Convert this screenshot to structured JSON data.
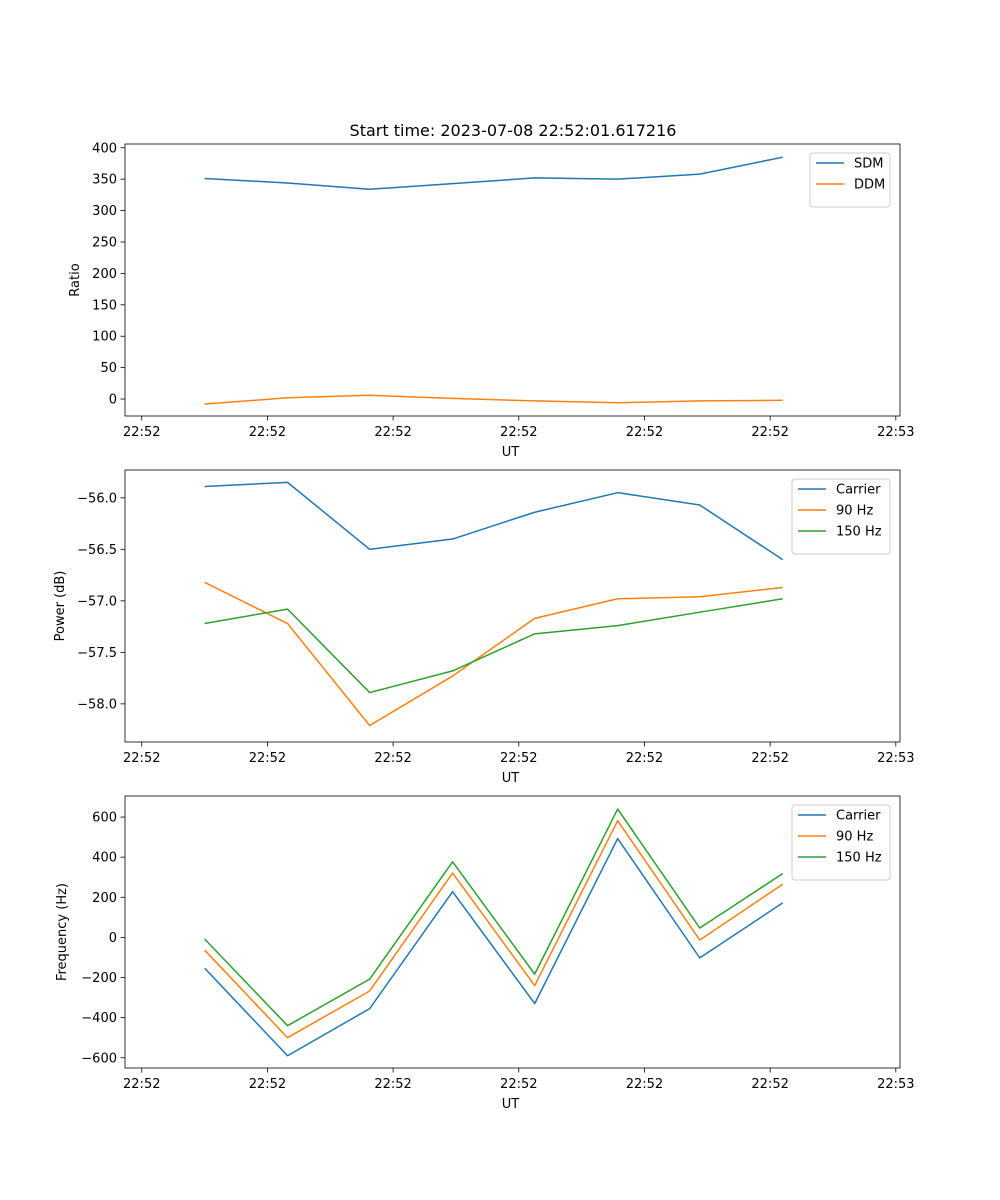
{
  "title": "Start time: 2023-07-08 22:52:01.617216",
  "chart_data": [
    {
      "type": "line",
      "xlabel": "UT",
      "ylabel": "Ratio",
      "xlim": [
        0,
        9.25
      ],
      "ylim": [
        -27,
        406
      ],
      "x_ticks": [
        0.2,
        1.7,
        3.2,
        4.7,
        6.2,
        7.7,
        9.2
      ],
      "x_tick_labels": [
        "22:52",
        "22:52",
        "22:52",
        "22:52",
        "22:52",
        "22:52",
        "22:53"
      ],
      "y_ticks": [
        0,
        50,
        100,
        150,
        200,
        250,
        300,
        350,
        400
      ],
      "y_tick_labels": [
        "0",
        "50",
        "100",
        "150",
        "200",
        "250",
        "300",
        "350",
        "400"
      ],
      "x": [
        0.95,
        1.94,
        2.92,
        3.91,
        4.89,
        5.88,
        6.86,
        7.85
      ],
      "legend_position": "top-right",
      "series": [
        {
          "name": "SDM",
          "color": "#1f77b4",
          "values": [
            351,
            344,
            334,
            343,
            352,
            350,
            358,
            385
          ]
        },
        {
          "name": "DDM",
          "color": "#ff7f0e",
          "values": [
            -8,
            2,
            6,
            1,
            -3,
            -6,
            -3,
            -2
          ]
        }
      ]
    },
    {
      "type": "line",
      "xlabel": "UT",
      "ylabel": "Power (dB)",
      "xlim": [
        0,
        9.25
      ],
      "ylim": [
        -58.37,
        -55.73
      ],
      "x_ticks": [
        0.2,
        1.7,
        3.2,
        4.7,
        6.2,
        7.7,
        9.2
      ],
      "x_tick_labels": [
        "22:52",
        "22:52",
        "22:52",
        "22:52",
        "22:52",
        "22:52",
        "22:53"
      ],
      "y_ticks": [
        -56.0,
        -56.5,
        -57.0,
        -57.5,
        -58.0
      ],
      "y_tick_labels": [
        "−56.0",
        "−56.5",
        "−57.0",
        "−57.5",
        "−58.0"
      ],
      "x": [
        0.95,
        1.94,
        2.92,
        3.91,
        4.89,
        5.88,
        6.86,
        7.85
      ],
      "legend_position": "top-right",
      "series": [
        {
          "name": "Carrier",
          "color": "#1f77b4",
          "values": [
            -55.89,
            -55.85,
            -56.5,
            -56.4,
            -56.14,
            -55.95,
            -56.07,
            -56.6
          ]
        },
        {
          "name": "90 Hz",
          "color": "#ff7f0e",
          "values": [
            -56.82,
            -57.22,
            -58.21,
            -57.73,
            -57.17,
            -56.98,
            -56.96,
            -56.87
          ]
        },
        {
          "name": "150 Hz",
          "color": "#2ca02c",
          "values": [
            -57.22,
            -57.08,
            -57.89,
            -57.68,
            -57.32,
            -57.24,
            -57.11,
            -56.98
          ]
        }
      ]
    },
    {
      "type": "line",
      "xlabel": "UT",
      "ylabel": "Frequency (Hz)",
      "xlim": [
        0,
        9.25
      ],
      "ylim": [
        -651,
        705
      ],
      "x_ticks": [
        0.2,
        1.7,
        3.2,
        4.7,
        6.2,
        7.7,
        9.2
      ],
      "x_tick_labels": [
        "22:52",
        "22:52",
        "22:52",
        "22:52",
        "22:52",
        "22:52",
        "22:53"
      ],
      "y_ticks": [
        600,
        400,
        200,
        0,
        -200,
        -400,
        -600
      ],
      "y_tick_labels": [
        "600",
        "400",
        "200",
        "0",
        "−200",
        "−400",
        "−600"
      ],
      "x": [
        0.95,
        1.94,
        2.92,
        3.91,
        4.89,
        5.88,
        6.86,
        7.85
      ],
      "legend_position": "top-right",
      "series": [
        {
          "name": "Carrier",
          "color": "#1f77b4",
          "values": [
            -153,
            -590,
            -355,
            228,
            -330,
            493,
            -102,
            172
          ]
        },
        {
          "name": "90 Hz",
          "color": "#ff7f0e",
          "values": [
            -63,
            -500,
            -267,
            321,
            -240,
            582,
            -13,
            265
          ]
        },
        {
          "name": "150 Hz",
          "color": "#2ca02c",
          "values": [
            -8,
            -440,
            -208,
            377,
            -183,
            640,
            47,
            318
          ]
        }
      ]
    }
  ]
}
